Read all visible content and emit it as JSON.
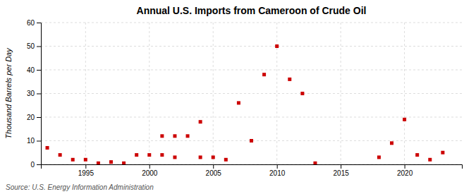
{
  "chart_data": {
    "type": "scatter",
    "title": "Annual U.S. Imports from Cameroon of Crude Oil",
    "ylabel": "Thousand Barrels per Day",
    "annotation": "Source: U.S. Energy Information Administration",
    "x": [
      1992,
      1993,
      1994,
      1995,
      1996,
      1997,
      1998,
      1999,
      2000,
      2001,
      2002,
      2001,
      2002,
      2003,
      2004,
      2004,
      2005,
      2006,
      2007,
      2008,
      2009,
      2010,
      2011,
      2012,
      2013,
      2018,
      2019,
      2020,
      2021,
      2022,
      2023
    ],
    "values": [
      7,
      4,
      2,
      2,
      0.5,
      1,
      0.5,
      4,
      4,
      4,
      3,
      12,
      12,
      12,
      18,
      3,
      3,
      2,
      26,
      10,
      38,
      50,
      36,
      30,
      0.5,
      3,
      9,
      19,
      4,
      2,
      5
    ],
    "color": "#cc0000",
    "marker": "square",
    "xlim": [
      1991.5,
      2024.5
    ],
    "ylim": [
      0,
      60
    ],
    "xticks": [
      1995,
      2000,
      2005,
      2010,
      2015,
      2020
    ],
    "yticks": [
      0,
      10,
      20,
      30,
      40,
      50,
      60
    ],
    "grid": true
  }
}
